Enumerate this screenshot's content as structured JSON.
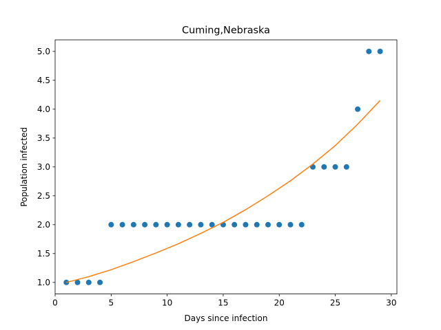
{
  "chart_data": {
    "type": "scatter",
    "title": "Cuming,Nebraska",
    "xlabel": "Days since infection",
    "ylabel": "Population infected",
    "xlim": [
      0,
      30.5
    ],
    "ylim": [
      0.8,
      5.2
    ],
    "xticks": [
      0,
      5,
      10,
      15,
      20,
      25,
      30
    ],
    "yticks": [
      1.0,
      1.5,
      2.0,
      2.5,
      3.0,
      3.5,
      4.0,
      4.5,
      5.0
    ],
    "xtick_labels": [
      "0",
      "5",
      "10",
      "15",
      "20",
      "25",
      "30"
    ],
    "ytick_labels": [
      "1.0",
      "1.5",
      "2.0",
      "2.5",
      "3.0",
      "3.5",
      "4.0",
      "4.5",
      "5.0"
    ],
    "grid": false,
    "series": [
      {
        "kind": "scatter",
        "color": "#1f77b4",
        "x": [
          1,
          2,
          3,
          4,
          5,
          6,
          7,
          8,
          9,
          10,
          11,
          12,
          13,
          14,
          15,
          16,
          17,
          18,
          19,
          20,
          21,
          22,
          23,
          24,
          25,
          26,
          27,
          28,
          29
        ],
        "y": [
          1,
          1,
          1,
          1,
          2,
          2,
          2,
          2,
          2,
          2,
          2,
          2,
          2,
          2,
          2,
          2,
          2,
          2,
          2,
          2,
          2,
          2,
          3,
          3,
          3,
          3,
          4,
          5,
          5
        ]
      },
      {
        "kind": "line",
        "color": "#ff7f0e",
        "x": [
          1,
          3,
          5,
          7,
          9,
          11,
          13,
          15,
          17,
          19,
          21,
          23,
          25,
          27,
          29
        ],
        "y": [
          1.0,
          1.1,
          1.22,
          1.36,
          1.51,
          1.67,
          1.85,
          2.04,
          2.26,
          2.5,
          2.76,
          3.05,
          3.37,
          3.74,
          4.15
        ]
      }
    ]
  }
}
